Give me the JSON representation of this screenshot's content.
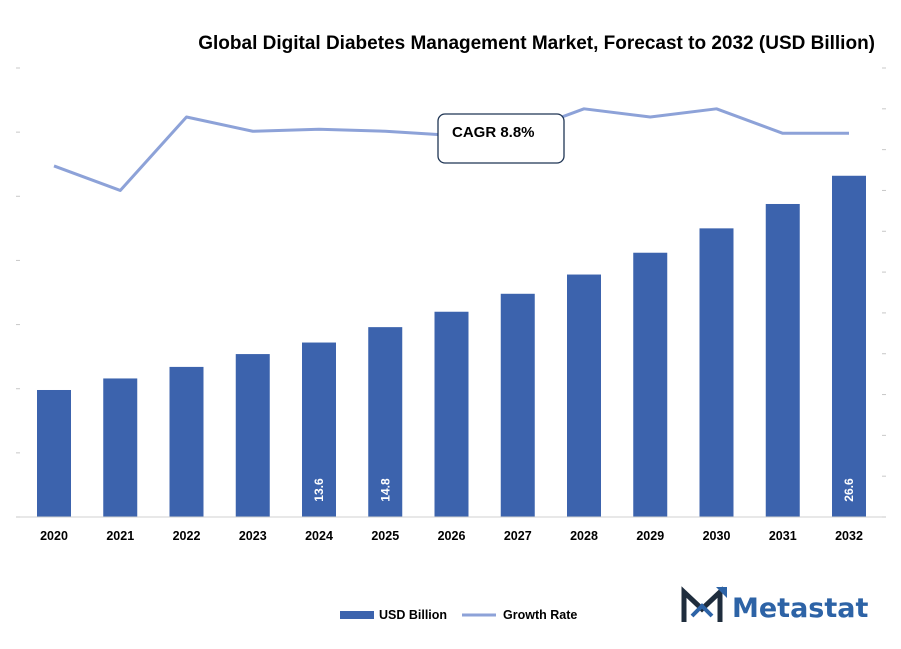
{
  "chart_data": {
    "type": "bar",
    "title": "Global Digital Diabetes Management Market, Forecast to 2032 (USD Billion)",
    "categories": [
      "2020",
      "2021",
      "2022",
      "2023",
      "2024",
      "2025",
      "2026",
      "2027",
      "2028",
      "2029",
      "2030",
      "2031",
      "2032"
    ],
    "series": [
      {
        "name": "USD Billion",
        "type": "bar",
        "color": "#3c63ad",
        "values": [
          9.9,
          10.8,
          11.7,
          12.7,
          13.6,
          14.8,
          16.0,
          17.4,
          18.9,
          20.6,
          22.5,
          24.4,
          26.6
        ]
      },
      {
        "name": "Growth Rate",
        "type": "line",
        "color": "#8da2d8",
        "values": [
          7.2,
          6.0,
          9.6,
          8.9,
          9.0,
          8.9,
          8.7,
          8.8,
          10.0,
          9.6,
          10.0,
          8.8,
          8.8
        ]
      }
    ],
    "data_labels": [
      {
        "index": 4,
        "text": "13.6"
      },
      {
        "index": 5,
        "text": "14.8"
      },
      {
        "index": 12,
        "text": "26.6"
      }
    ],
    "annotation": "CAGR 8.8%",
    "ylim_left": [
      0,
      35
    ],
    "ylim_right": [
      -10,
      12
    ],
    "grid": false,
    "legend_position": "bottom"
  },
  "branding": {
    "logo_text": "Metastat",
    "logo_icon": "metastat-m-logo-icon",
    "colors": {
      "dark": "#1f2d3d",
      "blue": "#2d63a6"
    }
  }
}
